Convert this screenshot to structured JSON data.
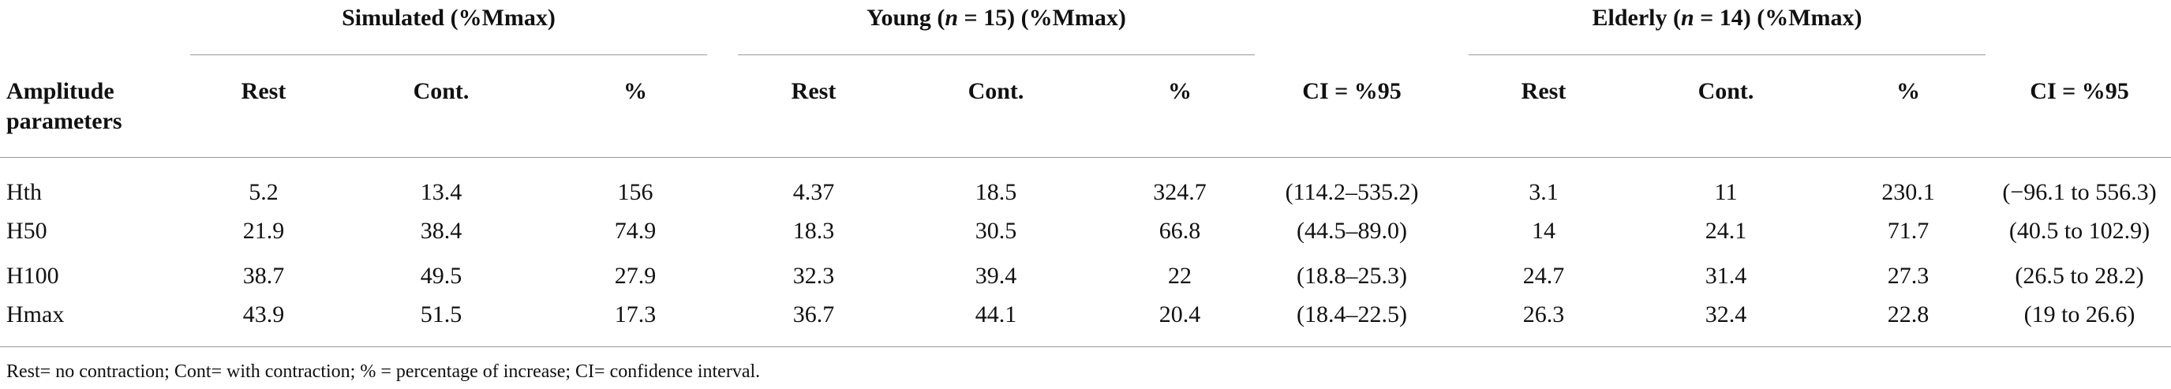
{
  "table": {
    "groups": [
      {
        "parts": [
          "Simulated (%Mmax)"
        ]
      },
      {
        "parts": [
          "Young (",
          "n",
          " = 15) (%Mmax)"
        ]
      },
      {
        "parts": [
          "Elderly (",
          "n",
          " = 14) (%Mmax)"
        ]
      }
    ],
    "columns": [
      "Amplitude parameters",
      "Rest",
      "Cont.",
      "%",
      "Rest",
      "Cont.",
      "%",
      "CI = %95",
      "Rest",
      "Cont.",
      "%",
      "CI = %95"
    ],
    "rows": [
      [
        "Hth",
        "5.2",
        "13.4",
        "156",
        "4.37",
        "18.5",
        "324.7",
        "(114.2–535.2)",
        "3.1",
        "11",
        "230.1",
        "(−96.1 to 556.3)"
      ],
      [
        "H50",
        "21.9",
        "38.4",
        "74.9",
        "18.3",
        "30.5",
        "66.8",
        "(44.5–89.0)",
        "14",
        "24.1",
        "71.7",
        "(40.5 to 102.9)"
      ],
      [
        "H100",
        "38.7",
        "49.5",
        "27.9",
        "32.3",
        "39.4",
        "22",
        "(18.8–25.3)",
        "24.7",
        "31.4",
        "27.3",
        "(26.5 to 28.2)"
      ],
      [
        "Hmax",
        "43.9",
        "51.5",
        "17.3",
        "36.7",
        "44.1",
        "20.4",
        "(18.4–22.5)",
        "26.3",
        "32.4",
        "22.8",
        "(19 to 26.6)"
      ]
    ]
  },
  "footnote": "Rest= no contraction; Cont= with contraction; % = percentage of increase; CI= confidence interval."
}
